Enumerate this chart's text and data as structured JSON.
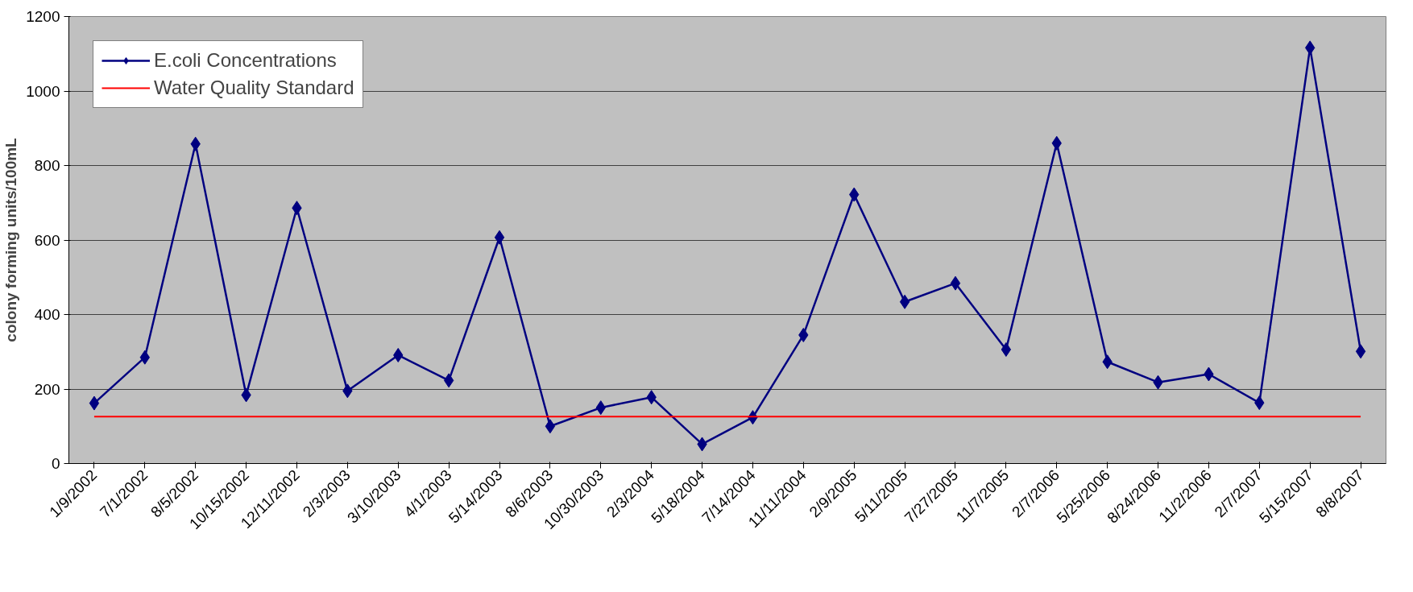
{
  "chart_data": {
    "type": "line",
    "ylabel": "colony forming units/100mL",
    "categories": [
      "1/9/2002",
      "7/1/2002",
      "8/5/2002",
      "10/15/2002",
      "12/11/2002",
      "2/3/2003",
      "3/10/2003",
      "4/1/2003",
      "5/14/2003",
      "8/6/2003",
      "10/30/2003",
      "2/3/2004",
      "5/18/2004",
      "7/14/2004",
      "11/11/2004",
      "2/9/2005",
      "5/11/2005",
      "7/27/2005",
      "11/7/2005",
      "2/7/2006",
      "5/25/2006",
      "8/24/2006",
      "11/2/2006",
      "2/7/2007",
      "5/15/2007",
      "8/8/2007"
    ],
    "series": [
      {
        "name": "E.coli Concentrations",
        "color": "#000080",
        "values": [
          162,
          285,
          858,
          184,
          686,
          195,
          291,
          223,
          607,
          100,
          150,
          178,
          52,
          124,
          345,
          722,
          434,
          484,
          306,
          860,
          273,
          218,
          240,
          163,
          1116,
          301
        ]
      }
    ],
    "ref_lines": [
      {
        "axis": "y",
        "value": 126,
        "label": "Water Quality Standard",
        "color": "#ff0000"
      }
    ],
    "ylim": [
      0,
      1200
    ],
    "yticks": [
      0,
      200,
      400,
      600,
      800,
      1000,
      1200
    ],
    "grid": "y",
    "legend": "top left",
    "marker": "diamond",
    "line_style": "solid"
  }
}
